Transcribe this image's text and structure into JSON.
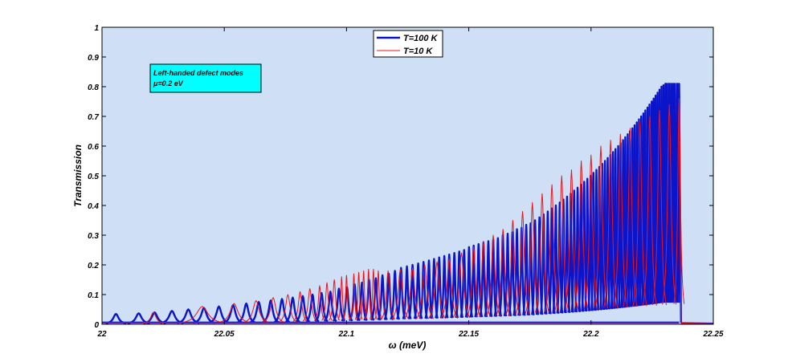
{
  "chart_data": {
    "type": "line",
    "xlabel": "ω (meV)",
    "ylabel": "Transmission",
    "xlim": [
      22.0,
      22.25
    ],
    "ylim": [
      0,
      1
    ],
    "xticks": [
      22,
      22.05,
      22.1,
      22.15,
      22.2,
      22.25
    ],
    "xtick_labels": [
      "22",
      "22.05",
      "22.1",
      "22.15",
      "22.2",
      "22.25"
    ],
    "yticks": [
      0,
      0.1,
      0.2,
      0.3,
      0.4,
      0.5,
      0.6,
      0.7,
      0.8,
      0.9,
      1
    ],
    "ytick_labels": [
      "0",
      "0.1",
      "0.2",
      "0.3",
      "0.4",
      "0.5",
      "0.6",
      "0.7",
      "0.8",
      "0.9",
      "1"
    ],
    "grid": false,
    "background_color": "#cfdff5",
    "legend_position": "top-center",
    "series": [
      {
        "name": "T=100 K",
        "color": "#0a14c8",
        "peaks": [
          [
            22.0057,
            0.035
          ],
          [
            22.015,
            0.037
          ],
          [
            22.0215,
            0.04
          ],
          [
            22.0286,
            0.045
          ],
          [
            22.0353,
            0.05
          ],
          [
            22.0417,
            0.055
          ],
          [
            22.0478,
            0.06
          ],
          [
            22.0536,
            0.065
          ],
          [
            22.059,
            0.07
          ],
          [
            22.0641,
            0.075
          ],
          [
            22.069,
            0.08
          ],
          [
            22.0736,
            0.085
          ],
          [
            22.078,
            0.09
          ],
          [
            22.0821,
            0.095
          ],
          [
            22.0861,
            0.1
          ],
          [
            22.0898,
            0.105
          ],
          [
            22.0934,
            0.11
          ],
          [
            22.0969,
            0.12
          ],
          [
            22.1002,
            0.125
          ],
          [
            22.1033,
            0.135
          ],
          [
            22.1063,
            0.14
          ],
          [
            22.1092,
            0.15
          ],
          [
            22.112,
            0.155
          ],
          [
            22.1147,
            0.165
          ],
          [
            22.1173,
            0.17
          ],
          [
            22.1198,
            0.18
          ],
          [
            22.1223,
            0.19
          ],
          [
            22.1247,
            0.195
          ],
          [
            22.127,
            0.2
          ],
          [
            22.1293,
            0.205
          ],
          [
            22.1315,
            0.21
          ],
          [
            22.1337,
            0.215
          ],
          [
            22.1358,
            0.22
          ],
          [
            22.1379,
            0.225
          ],
          [
            22.14,
            0.23
          ],
          [
            22.142,
            0.235
          ],
          [
            22.1441,
            0.24
          ],
          [
            22.1461,
            0.245
          ],
          [
            22.1481,
            0.25
          ],
          [
            22.1501,
            0.26
          ],
          [
            22.152,
            0.265
          ],
          [
            22.154,
            0.27
          ],
          [
            22.156,
            0.275
          ],
          [
            22.158,
            0.28
          ],
          [
            22.16,
            0.285
          ],
          [
            22.1619,
            0.29
          ],
          [
            22.1639,
            0.3
          ],
          [
            22.1659,
            0.305
          ],
          [
            22.1678,
            0.31
          ],
          [
            22.1697,
            0.32
          ],
          [
            22.1716,
            0.325
          ],
          [
            22.1735,
            0.335
          ],
          [
            22.1753,
            0.34
          ],
          [
            22.1771,
            0.35
          ],
          [
            22.1789,
            0.36
          ],
          [
            22.1806,
            0.37
          ],
          [
            22.1823,
            0.38
          ],
          [
            22.184,
            0.39
          ],
          [
            22.1856,
            0.4
          ],
          [
            22.1872,
            0.41
          ],
          [
            22.1887,
            0.42
          ],
          [
            22.1902,
            0.43
          ],
          [
            22.1917,
            0.44
          ],
          [
            22.1931,
            0.45
          ],
          [
            22.1945,
            0.46
          ],
          [
            22.1959,
            0.47
          ],
          [
            22.1972,
            0.48
          ],
          [
            22.1985,
            0.49
          ],
          [
            22.1998,
            0.5
          ],
          [
            22.201,
            0.51
          ],
          [
            22.2022,
            0.52
          ],
          [
            22.2034,
            0.53
          ],
          [
            22.2046,
            0.54
          ],
          [
            22.2057,
            0.55
          ],
          [
            22.2068,
            0.56
          ],
          [
            22.2079,
            0.57
          ],
          [
            22.209,
            0.58
          ],
          [
            22.21,
            0.59
          ],
          [
            22.2111,
            0.6
          ],
          [
            22.2121,
            0.61
          ],
          [
            22.2131,
            0.62
          ],
          [
            22.214,
            0.63
          ],
          [
            22.215,
            0.64
          ],
          [
            22.2159,
            0.65
          ],
          [
            22.2169,
            0.66
          ],
          [
            22.2178,
            0.67
          ],
          [
            22.2187,
            0.68
          ],
          [
            22.2196,
            0.69
          ],
          [
            22.2205,
            0.7
          ],
          [
            22.2214,
            0.71
          ],
          [
            22.2222,
            0.72
          ],
          [
            22.2231,
            0.73
          ],
          [
            22.2239,
            0.74
          ],
          [
            22.2248,
            0.75
          ],
          [
            22.2256,
            0.76
          ],
          [
            22.2264,
            0.77
          ],
          [
            22.2272,
            0.78
          ],
          [
            22.228,
            0.79
          ],
          [
            22.2288,
            0.8
          ],
          [
            22.2296,
            0.805
          ],
          [
            22.2304,
            0.81
          ],
          [
            22.2311,
            0.81
          ],
          [
            22.2319,
            0.81
          ],
          [
            22.2327,
            0.81
          ],
          [
            22.2335,
            0.81
          ],
          [
            22.2343,
            0.81
          ],
          [
            22.2352,
            0.81
          ],
          [
            22.236,
            0.81
          ]
        ]
      },
      {
        "name": "T=10 K",
        "color": "#e8141e",
        "peaks": [
          [
            22.021,
            0.04
          ],
          [
            22.041,
            0.06
          ],
          [
            22.054,
            0.07
          ],
          [
            22.063,
            0.08
          ],
          [
            22.07,
            0.09
          ],
          [
            22.076,
            0.1
          ],
          [
            22.081,
            0.11
          ],
          [
            22.085,
            0.12
          ],
          [
            22.089,
            0.13
          ],
          [
            22.092,
            0.14
          ],
          [
            22.095,
            0.15
          ],
          [
            22.098,
            0.16
          ],
          [
            22.1,
            0.165
          ],
          [
            22.103,
            0.17
          ],
          [
            22.105,
            0.175
          ],
          [
            22.107,
            0.18
          ],
          [
            22.109,
            0.185
          ],
          [
            22.111,
            0.185
          ],
          [
            22.113,
            0.18
          ],
          [
            22.117,
            0.18
          ],
          [
            22.122,
            0.185
          ],
          [
            22.127,
            0.19
          ],
          [
            22.132,
            0.2
          ],
          [
            22.137,
            0.21
          ],
          [
            22.142,
            0.22
          ],
          [
            22.147,
            0.24
          ],
          [
            22.152,
            0.26
          ],
          [
            22.156,
            0.28
          ],
          [
            22.16,
            0.3
          ],
          [
            22.164,
            0.32
          ],
          [
            22.168,
            0.35
          ],
          [
            22.172,
            0.38
          ],
          [
            22.176,
            0.41
          ],
          [
            22.18,
            0.44
          ],
          [
            22.184,
            0.47
          ],
          [
            22.188,
            0.5
          ],
          [
            22.192,
            0.52
          ],
          [
            22.196,
            0.55
          ],
          [
            22.2,
            0.57
          ],
          [
            22.204,
            0.6
          ],
          [
            22.208,
            0.62
          ],
          [
            22.212,
            0.64
          ],
          [
            22.216,
            0.66
          ],
          [
            22.22,
            0.68
          ],
          [
            22.224,
            0.7
          ],
          [
            22.228,
            0.72
          ],
          [
            22.232,
            0.74
          ],
          [
            22.236,
            0.76
          ]
        ]
      }
    ],
    "annotations": [
      {
        "text": "Left-handed defect modes",
        "x": 22.034,
        "y": 0.845
      },
      {
        "text": "μ=0.2 eV",
        "x": 22.034,
        "y": 0.81
      }
    ]
  }
}
